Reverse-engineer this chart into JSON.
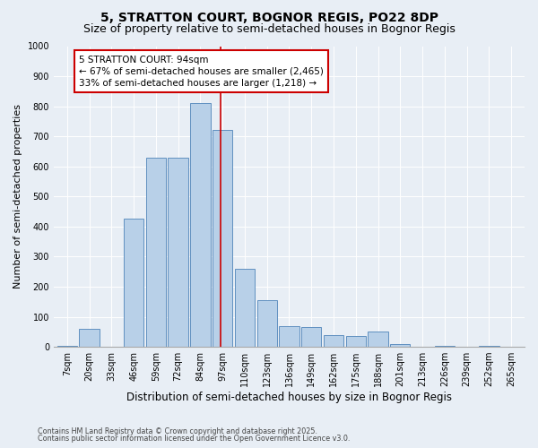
{
  "title": "5, STRATTON COURT, BOGNOR REGIS, PO22 8DP",
  "subtitle": "Size of property relative to semi-detached houses in Bognor Regis",
  "xlabel": "Distribution of semi-detached houses by size in Bognor Regis",
  "ylabel": "Number of semi-detached properties",
  "categories": [
    "7sqm",
    "20sqm",
    "33sqm",
    "46sqm",
    "59sqm",
    "72sqm",
    "84sqm",
    "97sqm",
    "110sqm",
    "123sqm",
    "136sqm",
    "149sqm",
    "162sqm",
    "175sqm",
    "188sqm",
    "201sqm",
    "213sqm",
    "226sqm",
    "239sqm",
    "252sqm",
    "265sqm"
  ],
  "values": [
    2,
    60,
    0,
    425,
    630,
    630,
    810,
    720,
    260,
    155,
    70,
    65,
    40,
    35,
    50,
    10,
    0,
    2,
    0,
    2,
    0
  ],
  "bar_color": "#b8d0e8",
  "bar_edge_color": "#6090c0",
  "property_line_x": 6.92,
  "annotation_text": "5 STRATTON COURT: 94sqm\n← 67% of semi-detached houses are smaller (2,465)\n33% of semi-detached houses are larger (1,218) →",
  "annotation_box_color": "#ffffff",
  "annotation_box_edge": "#cc0000",
  "line_color": "#cc0000",
  "ylim": [
    0,
    1000
  ],
  "yticks": [
    0,
    100,
    200,
    300,
    400,
    500,
    600,
    700,
    800,
    900,
    1000
  ],
  "background_color": "#e8eef5",
  "footer_line1": "Contains HM Land Registry data © Crown copyright and database right 2025.",
  "footer_line2": "Contains public sector information licensed under the Open Government Licence v3.0.",
  "title_fontsize": 10,
  "subtitle_fontsize": 9,
  "xlabel_fontsize": 8.5,
  "ylabel_fontsize": 8,
  "tick_fontsize": 7,
  "annot_fontsize": 7.5
}
